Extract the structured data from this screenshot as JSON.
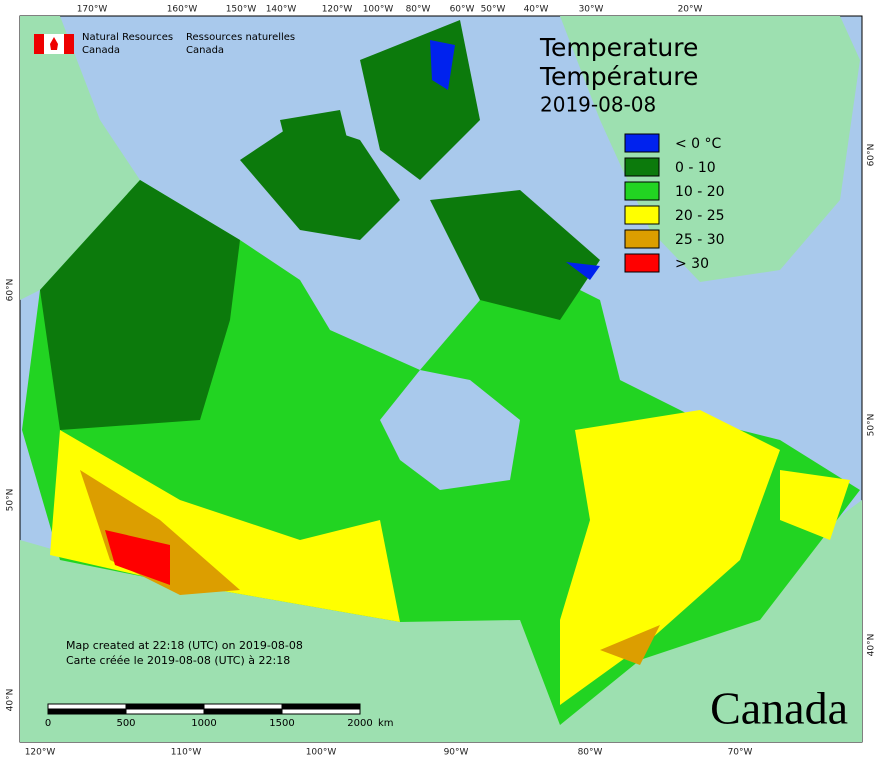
{
  "header": {
    "agency_en": "Natural Resources",
    "country_en": "Canada",
    "agency_fr": "Ressources naturelles",
    "country_fr": "Canada"
  },
  "title": {
    "line1": "Temperature",
    "line2": "Température",
    "date": "2019-08-08"
  },
  "legend": [
    {
      "label": "< 0 °C",
      "color": "#0022ee"
    },
    {
      "label": "0 - 10",
      "color": "#0c7a0c"
    },
    {
      "label": "10 - 20",
      "color": "#22d422"
    },
    {
      "label": "20 - 25",
      "color": "#ffff00"
    },
    {
      "label": "25 - 30",
      "color": "#dc9e00"
    },
    {
      "label": "> 30",
      "color": "#ff0000"
    }
  ],
  "graticule": {
    "top": [
      "170°W",
      "160°W",
      "150°W",
      "140°W",
      "120°W",
      "100°W",
      "80°W",
      "60°W",
      "50°W",
      "40°W",
      "30°W",
      "20°W"
    ],
    "bottom": [
      "120°W",
      "110°W",
      "100°W",
      "90°W",
      "80°W",
      "70°W"
    ],
    "left": [
      "60°N",
      "50°N",
      "40°N"
    ],
    "right": [
      "60°N",
      "50°N",
      "40°N"
    ]
  },
  "credit": {
    "en": "Map created at 22:18 (UTC) on 2019-08-08",
    "fr": "Carte créée le 2019-08-08 (UTC) à 22:18"
  },
  "scale": {
    "labels": [
      "0",
      "500",
      "1000",
      "1500",
      "2000"
    ],
    "unit": "km"
  },
  "wordmark": "Canada"
}
